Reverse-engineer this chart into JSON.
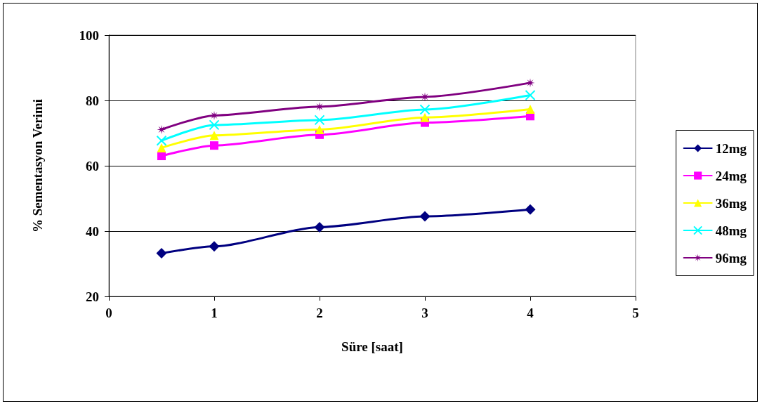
{
  "chart_data": {
    "type": "line",
    "xlabel": "Süre [saat]",
    "ylabel": "% Sementasyon Verimi",
    "x": [
      0.5,
      1,
      2,
      3,
      4
    ],
    "xlim": [
      0,
      5
    ],
    "xticks": [
      0,
      1,
      2,
      3,
      4,
      5
    ],
    "ylim": [
      20,
      100
    ],
    "yticks": [
      20,
      40,
      60,
      80,
      100
    ],
    "grid": "y",
    "legend": "right",
    "line_style": "solid",
    "series": [
      {
        "name": "12mg",
        "color": "#000080",
        "marker": "diamond",
        "values": [
          33.2,
          35.3,
          41.2,
          44.5,
          46.6
        ]
      },
      {
        "name": "24mg",
        "color": "#ff00ff",
        "marker": "square",
        "values": [
          63.0,
          66.2,
          69.5,
          73.2,
          75.2
        ]
      },
      {
        "name": "36mg",
        "color": "#ffff00",
        "marker": "triangle",
        "values": [
          65.5,
          69.3,
          71.1,
          74.8,
          77.3
        ]
      },
      {
        "name": "48mg",
        "color": "#00ffff",
        "marker": "cross",
        "values": [
          67.7,
          72.5,
          74.0,
          77.2,
          81.6
        ]
      },
      {
        "name": "96mg",
        "color": "#800080",
        "marker": "star",
        "values": [
          71.1,
          75.4,
          78.1,
          81.1,
          85.4
        ]
      }
    ]
  }
}
